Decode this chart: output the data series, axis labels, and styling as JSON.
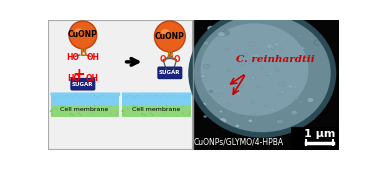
{
  "left_bg": "#f0f0f0",
  "right_bg": "#0a0a0a",
  "cuonp_color": "#e8601a",
  "cuonp_edge": "#c04010",
  "sugar_color": "#1a237e",
  "sugar_text": "SUGAR",
  "sugar_text_color": "#ffffff",
  "cell_mem_blue": "#7ecef4",
  "cell_mem_blue_dark": "#5ab4e0",
  "cell_mem_green": "#90d67a",
  "ho_oh_color": "#ff0000",
  "b_color": "#cc6600",
  "o_color": "#ff2200",
  "red_arrow_color": "#cc0000",
  "label_cuonp": "CuONP",
  "label_cell_membrane": "Cell membrane",
  "label_species": "C. reinhardtii",
  "label_compound": "CuONPs/GLYMO/4-HPBA",
  "label_scale": "1 μm",
  "plus_color": "#ff0000"
}
